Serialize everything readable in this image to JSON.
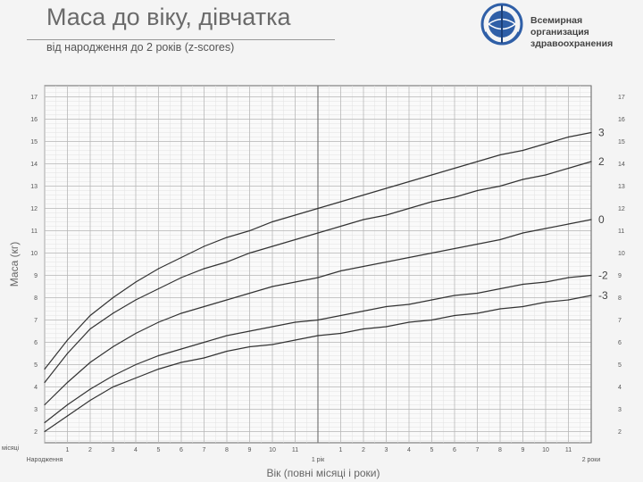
{
  "header": {
    "title": "Маса до віку, дівчатка",
    "subtitle": "від народження до 2 років (z-scores)",
    "org_line1": "Всемирная организация",
    "org_line2": "здравоохранения"
  },
  "chart_data": {
    "type": "line",
    "title": "Маса до віку, дівчатка",
    "subtitle": "від народження до 2 років (z-scores)",
    "xlabel": "Вік (повні місяці і роки)",
    "ylabel": "Маса (кг)",
    "xlim": [
      0,
      24
    ],
    "ylim": [
      1.5,
      17.5
    ],
    "grid": true,
    "x_tick_labels": [
      {
        "x": 0,
        "label": "Народження"
      },
      {
        "x": 1,
        "label": "1"
      },
      {
        "x": 2,
        "label": "2"
      },
      {
        "x": 3,
        "label": "3"
      },
      {
        "x": 4,
        "label": "4"
      },
      {
        "x": 5,
        "label": "5"
      },
      {
        "x": 6,
        "label": "6"
      },
      {
        "x": 7,
        "label": "7"
      },
      {
        "x": 8,
        "label": "8"
      },
      {
        "x": 9,
        "label": "9"
      },
      {
        "x": 10,
        "label": "10"
      },
      {
        "x": 11,
        "label": "11"
      },
      {
        "x": 12,
        "label": "1 рік"
      },
      {
        "x": 13,
        "label": "1"
      },
      {
        "x": 14,
        "label": "2"
      },
      {
        "x": 15,
        "label": "3"
      },
      {
        "x": 16,
        "label": "4"
      },
      {
        "x": 17,
        "label": "5"
      },
      {
        "x": 18,
        "label": "6"
      },
      {
        "x": 19,
        "label": "7"
      },
      {
        "x": 20,
        "label": "8"
      },
      {
        "x": 21,
        "label": "9"
      },
      {
        "x": 22,
        "label": "10"
      },
      {
        "x": 23,
        "label": "11"
      },
      {
        "x": 24,
        "label": "2 роки"
      }
    ],
    "x_unit_label": "місяці",
    "y_ticks": [
      2,
      3,
      4,
      5,
      6,
      7,
      8,
      9,
      10,
      11,
      12,
      13,
      14,
      15,
      16,
      17
    ],
    "x": [
      0,
      1,
      2,
      3,
      4,
      5,
      6,
      7,
      8,
      9,
      10,
      11,
      12,
      13,
      14,
      15,
      16,
      17,
      18,
      19,
      20,
      21,
      22,
      23,
      24
    ],
    "series": [
      {
        "name": "3",
        "values": [
          4.8,
          6.1,
          7.2,
          8.0,
          8.7,
          9.3,
          9.8,
          10.3,
          10.7,
          11.0,
          11.4,
          11.7,
          12.0,
          12.3,
          12.6,
          12.9,
          13.2,
          13.5,
          13.8,
          14.1,
          14.4,
          14.6,
          14.9,
          15.2,
          15.4
        ]
      },
      {
        "name": "2",
        "values": [
          4.2,
          5.5,
          6.6,
          7.3,
          7.9,
          8.4,
          8.9,
          9.3,
          9.6,
          10.0,
          10.3,
          10.6,
          10.9,
          11.2,
          11.5,
          11.7,
          12.0,
          12.3,
          12.5,
          12.8,
          13.0,
          13.3,
          13.5,
          13.8,
          14.1
        ]
      },
      {
        "name": "0",
        "values": [
          3.2,
          4.2,
          5.1,
          5.8,
          6.4,
          6.9,
          7.3,
          7.6,
          7.9,
          8.2,
          8.5,
          8.7,
          8.9,
          9.2,
          9.4,
          9.6,
          9.8,
          10.0,
          10.2,
          10.4,
          10.6,
          10.9,
          11.1,
          11.3,
          11.5
        ]
      },
      {
        "name": "-2",
        "values": [
          2.4,
          3.2,
          3.9,
          4.5,
          5.0,
          5.4,
          5.7,
          6.0,
          6.3,
          6.5,
          6.7,
          6.9,
          7.0,
          7.2,
          7.4,
          7.6,
          7.7,
          7.9,
          8.1,
          8.2,
          8.4,
          8.6,
          8.7,
          8.9,
          9.0
        ]
      },
      {
        "name": "-3",
        "values": [
          2.0,
          2.7,
          3.4,
          4.0,
          4.4,
          4.8,
          5.1,
          5.3,
          5.6,
          5.8,
          5.9,
          6.1,
          6.3,
          6.4,
          6.6,
          6.7,
          6.9,
          7.0,
          7.2,
          7.3,
          7.5,
          7.6,
          7.8,
          7.9,
          8.1
        ]
      }
    ]
  }
}
